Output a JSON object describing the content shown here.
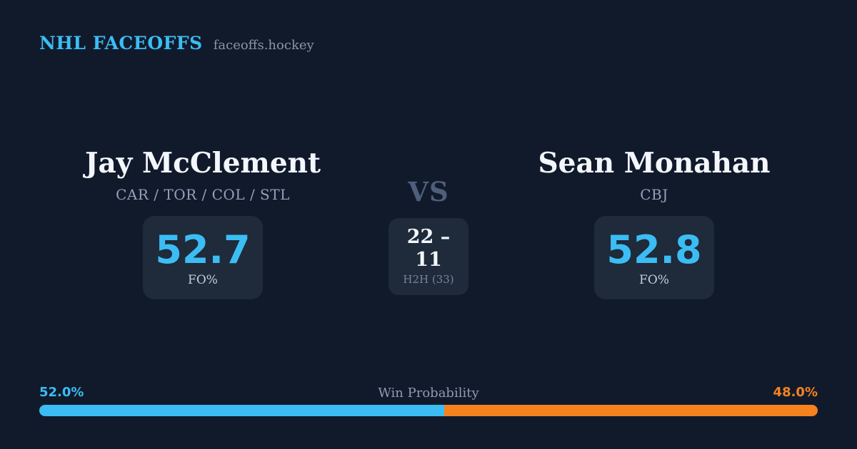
{
  "header": {
    "brand": "NHL FACEOFFS",
    "site": "faceoffs.hockey"
  },
  "players": {
    "left": {
      "name": "Jay McClement",
      "teams": "CAR / TOR / COL / STL",
      "stat_value": "52.7",
      "stat_label": "FO%"
    },
    "right": {
      "name": "Sean Monahan",
      "teams": "CBJ",
      "stat_value": "52.8",
      "stat_label": "FO%"
    }
  },
  "center": {
    "vs_label": "VS",
    "h2h_score": "22 – 11",
    "h2h_label": "H2H (33)"
  },
  "win_probability": {
    "title": "Win Probability",
    "left_label": "52.0%",
    "right_label": "48.0%",
    "left_width": "52%",
    "right_width": "48%"
  },
  "colors": {
    "background": "#111a2b",
    "card": "#1f2a3a",
    "accent_blue": "#3bbdf4",
    "accent_orange": "#f5821f",
    "text_primary": "#f3f6fb",
    "text_teams": "#93a1bb",
    "text_vs": "#4e5e7b",
    "text_h2h_label": "#76849f",
    "text_site": "#8b95a6",
    "text_stat_label": "#c6cdd9",
    "text_winprob_title": "#8f9bb1"
  }
}
